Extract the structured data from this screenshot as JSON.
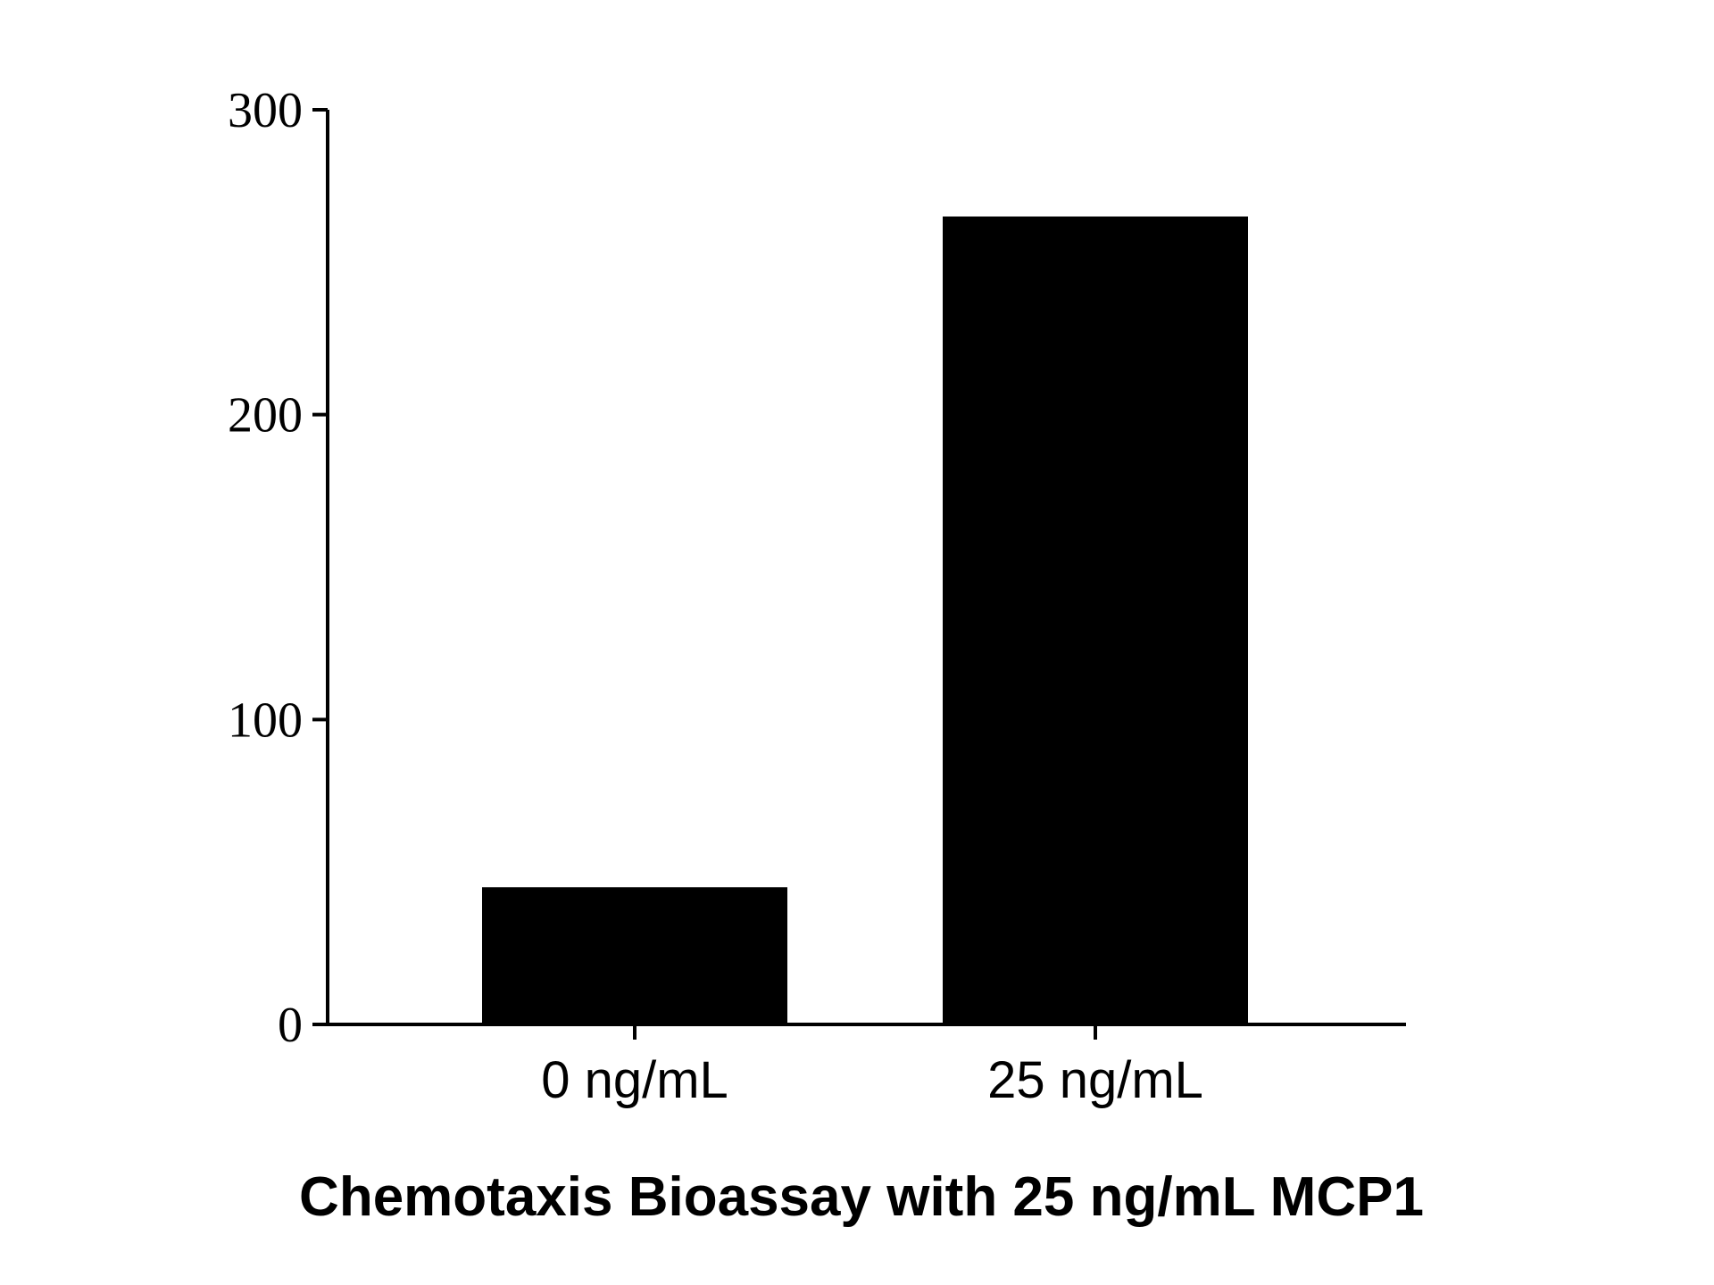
{
  "chart_data": {
    "type": "bar",
    "categories": [
      "0 ng/mL",
      "25 ng/mL"
    ],
    "values": [
      45,
      265
    ],
    "title": "",
    "xlabel": "Chemotaxis Bioassay with 25 ng/mL MCP1",
    "ylabel": "",
    "ylim": [
      0,
      300
    ],
    "yticks": [
      0,
      100,
      200,
      300
    ],
    "grid": false,
    "legend": "none",
    "bar_color": "#000000"
  }
}
